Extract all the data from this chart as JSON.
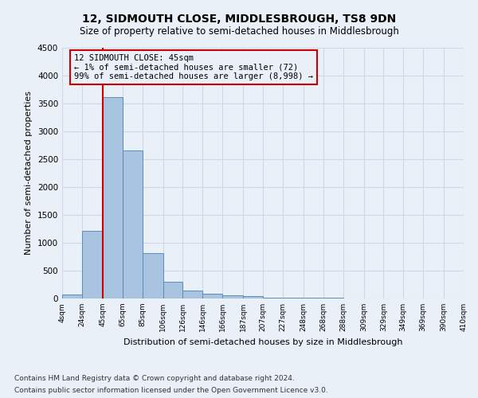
{
  "title": "12, SIDMOUTH CLOSE, MIDDLESBROUGH, TS8 9DN",
  "subtitle": "Size of property relative to semi-detached houses in Middlesbrough",
  "xlabel": "Distribution of semi-detached houses by size in Middlesbrough",
  "ylabel": "Number of semi-detached properties",
  "footer_line1": "Contains HM Land Registry data © Crown copyright and database right 2024.",
  "footer_line2": "Contains public sector information licensed under the Open Government Licence v3.0.",
  "property_size": 45,
  "annotation_line1": "12 SIDMOUTH CLOSE: 45sqm",
  "annotation_line2": "← 1% of semi-detached houses are smaller (72)",
  "annotation_line3": "99% of semi-detached houses are larger (8,998) →",
  "bar_edges": [
    4,
    24,
    45,
    65,
    85,
    106,
    126,
    146,
    166,
    187,
    207,
    227,
    248,
    268,
    288,
    309,
    329,
    349,
    369,
    390,
    410
  ],
  "bar_heights": [
    72,
    1220,
    3620,
    2650,
    820,
    300,
    140,
    90,
    60,
    50,
    20,
    15,
    10,
    8,
    5,
    5,
    3,
    3,
    2,
    2
  ],
  "bar_color": "#a8c4e0",
  "bar_edge_color": "#5b8db8",
  "red_line_color": "#cc0000",
  "annotation_box_color": "#cc0000",
  "grid_color": "#d0d8e8",
  "background_color": "#eaf0f8",
  "ylim": [
    0,
    4500
  ],
  "yticks": [
    0,
    500,
    1000,
    1500,
    2000,
    2500,
    3000,
    3500,
    4000,
    4500
  ]
}
